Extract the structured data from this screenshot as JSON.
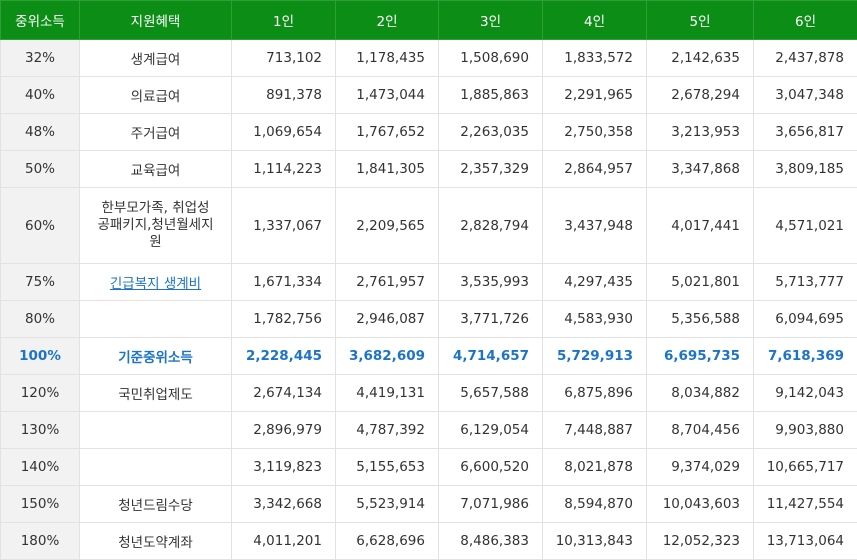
{
  "headers": [
    "중위소득",
    "지원혜택",
    "1인",
    "2인",
    "3인",
    "4인",
    "5인",
    "6인"
  ],
  "rows": [
    {
      "pct": "32%",
      "benefit": "생계급여",
      "values": [
        "713,102",
        "1,178,435",
        "1,508,690",
        "1,833,572",
        "2,142,635",
        "2,437,878"
      ]
    },
    {
      "pct": "40%",
      "benefit": "의료급여",
      "values": [
        "891,378",
        "1,473,044",
        "1,885,863",
        "2,291,965",
        "2,678,294",
        "3,047,348"
      ]
    },
    {
      "pct": "48%",
      "benefit": "주거급여",
      "values": [
        "1,069,654",
        "1,767,652",
        "2,263,035",
        "2,750,358",
        "3,213,953",
        "3,656,817"
      ]
    },
    {
      "pct": "50%",
      "benefit": "교육급여",
      "values": [
        "1,114,223",
        "1,841,305",
        "2,357,329",
        "2,864,957",
        "3,347,868",
        "3,809,185"
      ]
    },
    {
      "pct": "60%",
      "benefit": "한부모가족, 취업성공패키지,청년월세지원",
      "values": [
        "1,337,067",
        "2,209,565",
        "2,828,794",
        "3,437,948",
        "4,017,441",
        "4,571,021"
      ]
    },
    {
      "pct": "75%",
      "benefit": "긴급복지 생계비",
      "values": [
        "1,671,334",
        "2,761,957",
        "3,535,993",
        "4,297,435",
        "5,021,801",
        "5,713,777"
      ]
    },
    {
      "pct": "80%",
      "benefit": "",
      "values": [
        "1,782,756",
        "2,946,087",
        "3,771,726",
        "4,583,930",
        "5,356,588",
        "6,094,695"
      ]
    },
    {
      "pct": "100%",
      "benefit": "기준중위소득",
      "values": [
        "2,228,445",
        "3,682,609",
        "4,714,657",
        "5,729,913",
        "6,695,735",
        "7,618,369"
      ]
    },
    {
      "pct": "120%",
      "benefit": "국민취업제도",
      "values": [
        "2,674,134",
        "4,419,131",
        "5,657,588",
        "6,875,896",
        "8,034,882",
        "9,142,043"
      ]
    },
    {
      "pct": "130%",
      "benefit": "",
      "values": [
        "2,896,979",
        "4,787,392",
        "6,129,054",
        "7,448,887",
        "8,704,456",
        "9,903,880"
      ]
    },
    {
      "pct": "140%",
      "benefit": "",
      "values": [
        "3,119,823",
        "5,155,653",
        "6,600,520",
        "8,021,878",
        "9,374,029",
        "10,665,717"
      ]
    },
    {
      "pct": "150%",
      "benefit": "청년드림수당",
      "values": [
        "3,342,668",
        "5,523,914",
        "7,071,986",
        "8,594,870",
        "10,043,603",
        "11,427,554"
      ]
    },
    {
      "pct": "180%",
      "benefit": "청년도약계좌",
      "values": [
        "4,011,201",
        "6,628,696",
        "8,486,383",
        "10,313,843",
        "12,052,323",
        "13,713,064"
      ]
    }
  ]
}
